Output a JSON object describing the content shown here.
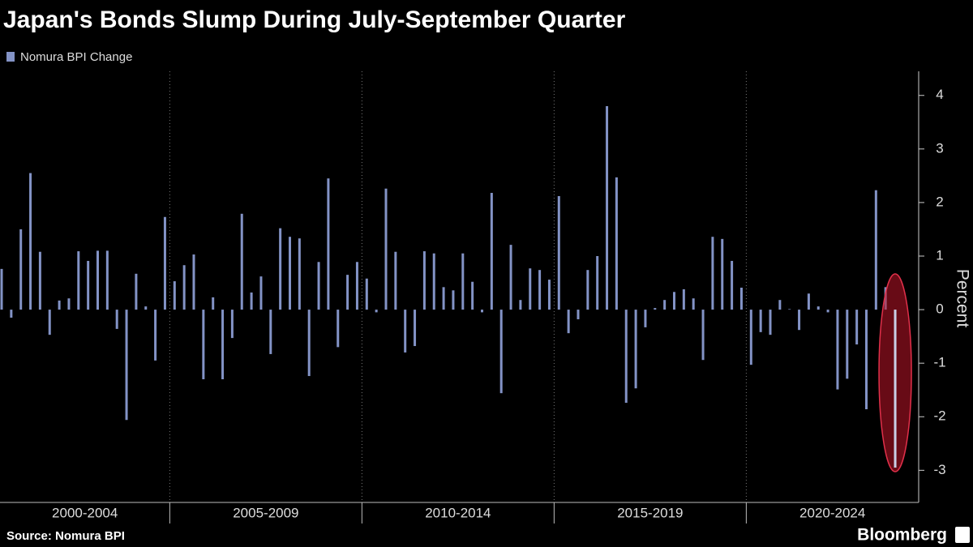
{
  "chart_data": {
    "type": "bar",
    "title": "Japan's Bonds Slump During July-September Quarter",
    "series_name": "Nomura BPI Change",
    "color": "#8393c6",
    "y_label": "Percent",
    "source": "Source: Nomura BPI",
    "brand": "Bloomberg",
    "ylim": [
      -3.6,
      4.45
    ],
    "yticks": [
      -3,
      -2,
      -1,
      0,
      1,
      2,
      3,
      4
    ],
    "groups": [
      {
        "label": "2000-2004",
        "values": [
          0.76,
          -0.15,
          1.5,
          2.55,
          1.08,
          -0.47,
          0.17,
          0.21,
          1.09,
          0.91,
          1.1,
          1.1,
          -0.36,
          -2.06,
          0.67,
          0.06,
          -0.95,
          1.73
        ]
      },
      {
        "label": "2005-2009",
        "values": [
          0.53,
          0.83,
          1.03,
          -1.3,
          0.23,
          -1.3,
          -0.53,
          1.79,
          0.32,
          0.62,
          -0.83,
          1.52,
          1.36,
          1.33,
          -1.24,
          0.89,
          2.45,
          -0.7,
          0.65,
          0.89
        ]
      },
      {
        "label": "2010-2014",
        "values": [
          0.58,
          -0.05,
          2.26,
          1.08,
          -0.8,
          -0.68,
          1.09,
          1.05,
          0.42,
          0.36,
          1.05,
          0.52,
          -0.05,
          2.18,
          -1.56,
          1.21,
          0.18,
          0.77,
          0.74,
          0.56
        ]
      },
      {
        "label": "2015-2019",
        "values": [
          2.12,
          -0.44,
          -0.18,
          0.74,
          1.0,
          3.8,
          2.47,
          -1.74,
          -1.47,
          -0.33,
          0.03,
          0.18,
          0.33,
          0.38,
          0.21,
          -0.94,
          1.36,
          1.32,
          0.91,
          0.41
        ]
      },
      {
        "label": "2020-2024",
        "values": [
          -1.03,
          -0.42,
          -0.47,
          0.18,
          0.01,
          -0.38,
          0.3,
          0.06,
          -0.05,
          -1.49,
          -1.29,
          -0.65,
          -1.86
        ]
      },
      {
        "label": null,
        "values": [
          2.23,
          0.42,
          -2.95
        ]
      }
    ]
  }
}
